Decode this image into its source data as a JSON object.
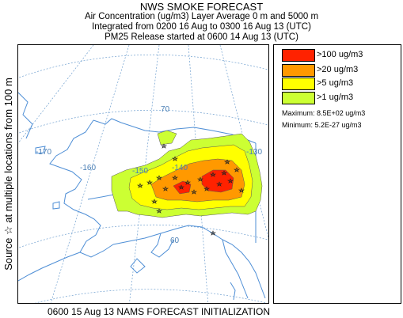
{
  "header": {
    "title": "NWS SMOKE FORECAST",
    "line1": "Air Concentration (ug/m3) Layer Average    0 m and  5000 m",
    "line2": "Integrated from 0200 16 Aug to 0300 16 Aug 13 (UTC)",
    "line3": "PM25 Release started at 0600 14 Aug 13 (UTC)"
  },
  "side_label": "Source ☆    at multiple locations    from   100 m",
  "map": {
    "graticule_labels": [
      "-170",
      "-160",
      "-150",
      "-140",
      "-130",
      "70",
      "60"
    ],
    "colors": {
      "coast": "#4f8fd6",
      "graticule": "#6f9fcf",
      "source_marker": "#222222"
    },
    "smoke_levels": [
      {
        "level": ">1 ug/m3",
        "color": "#ccff33"
      },
      {
        "level": ">5 ug/m3",
        "color": "#ffff00"
      },
      {
        "level": ">20 ug/m3",
        "color": "#ff9900"
      },
      {
        "level": ">100 ug/m3",
        "color": "#ff2200"
      }
    ]
  },
  "legend": {
    "items": [
      {
        "label": ">100 ug/m3",
        "color": "#ff2200"
      },
      {
        "label": ">20 ug/m3",
        "color": "#ff9900"
      },
      {
        "label": ">5 ug/m3",
        "color": "#ffff00"
      },
      {
        "label": ">1 ug/m3",
        "color": "#ccff33"
      }
    ],
    "maximum": "Maximum: 8.5E+02 ug/m3",
    "minimum": "Minimum: 5.2E-27 ug/m3"
  },
  "footer": "0600 15 Aug 13 NAMS FORECAST INITIALIZATION"
}
